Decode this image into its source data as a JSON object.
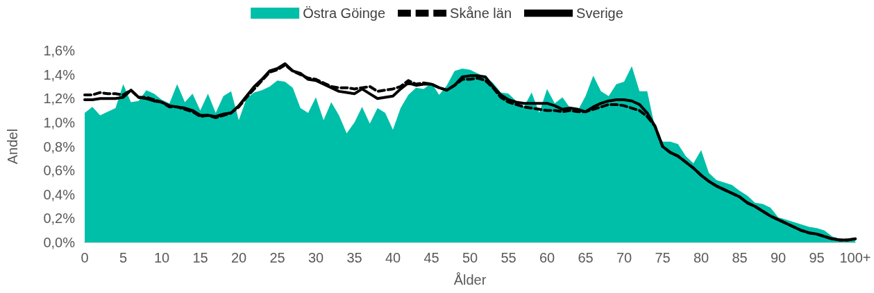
{
  "chart_data": {
    "type": "line",
    "xlabel": "Ålder",
    "ylabel": "Andel",
    "legend": "top",
    "grid": false,
    "marker": "none",
    "categories": [
      "0",
      null,
      null,
      null,
      null,
      "5",
      null,
      null,
      null,
      null,
      "10",
      null,
      null,
      null,
      null,
      "15",
      null,
      null,
      null,
      null,
      "20",
      null,
      null,
      null,
      null,
      "25",
      null,
      null,
      null,
      null,
      "30",
      null,
      null,
      null,
      null,
      "35",
      null,
      null,
      null,
      null,
      "40",
      null,
      null,
      null,
      null,
      "45",
      null,
      null,
      null,
      null,
      "50",
      null,
      null,
      null,
      null,
      "55",
      null,
      null,
      null,
      null,
      "60",
      null,
      null,
      null,
      null,
      "65",
      null,
      null,
      null,
      null,
      "70",
      null,
      null,
      null,
      null,
      "75",
      null,
      null,
      null,
      null,
      "80",
      null,
      null,
      null,
      null,
      "85",
      null,
      null,
      null,
      null,
      "90",
      null,
      null,
      null,
      null,
      "95",
      null,
      null,
      null,
      null,
      "100+"
    ],
    "ylim": [
      0,
      1.6
    ],
    "yticks": [
      {
        "value": 0,
        "label": "0,0%"
      },
      {
        "value": 0.2,
        "label": "0,2%"
      },
      {
        "value": 0.4,
        "label": "0,4%"
      },
      {
        "value": 0.6,
        "label": "0,6%"
      },
      {
        "value": 0.8,
        "label": "0,8%"
      },
      {
        "value": 1.0,
        "label": "1,0%"
      },
      {
        "value": 1.2,
        "label": "1,2%"
      },
      {
        "value": 1.4,
        "label": "1,4%"
      },
      {
        "value": 1.6,
        "label": "1,6%"
      }
    ],
    "series": [
      {
        "name": "Östra Göinge",
        "type": "area",
        "color": "#00bfa8",
        "values": [
          1.08,
          1.13,
          1.06,
          1.09,
          1.12,
          1.32,
          1.17,
          1.18,
          1.27,
          1.24,
          1.19,
          1.16,
          1.32,
          1.17,
          1.24,
          1.1,
          1.24,
          1.08,
          1.22,
          1.26,
          1.02,
          1.2,
          1.25,
          1.27,
          1.3,
          1.35,
          1.34,
          1.29,
          1.12,
          1.08,
          1.21,
          1.02,
          1.17,
          1.06,
          0.91,
          1.0,
          1.13,
          0.99,
          1.12,
          1.08,
          0.94,
          1.12,
          1.23,
          1.29,
          1.28,
          1.33,
          1.23,
          1.31,
          1.43,
          1.45,
          1.44,
          1.41,
          1.38,
          1.33,
          1.25,
          1.24,
          1.18,
          1.13,
          1.25,
          1.08,
          1.28,
          1.16,
          1.21,
          1.12,
          1.1,
          1.22,
          1.39,
          1.26,
          1.22,
          1.32,
          1.34,
          1.47,
          1.26,
          1.26,
          0.96,
          0.84,
          0.84,
          0.82,
          0.72,
          0.66,
          0.77,
          0.58,
          0.52,
          0.5,
          0.48,
          0.43,
          0.39,
          0.33,
          0.32,
          0.29,
          0.21,
          0.19,
          0.17,
          0.15,
          0.13,
          0.12,
          0.1,
          0.05,
          0.03,
          0.02,
          0.03
        ]
      },
      {
        "name": "Skåne län",
        "line_style": "dashed",
        "color": "#000000",
        "values": [
          1.23,
          1.23,
          1.25,
          1.24,
          1.24,
          1.23,
          1.27,
          1.21,
          1.21,
          1.19,
          1.17,
          1.13,
          1.13,
          1.11,
          1.09,
          1.05,
          1.06,
          1.04,
          1.06,
          1.08,
          1.13,
          1.21,
          1.28,
          1.35,
          1.42,
          1.44,
          1.48,
          1.43,
          1.4,
          1.37,
          1.36,
          1.33,
          1.3,
          1.29,
          1.29,
          1.28,
          1.29,
          1.3,
          1.26,
          1.27,
          1.28,
          1.3,
          1.35,
          1.32,
          1.33,
          1.32,
          1.29,
          1.27,
          1.31,
          1.36,
          1.36,
          1.37,
          1.35,
          1.29,
          1.21,
          1.17,
          1.15,
          1.13,
          1.12,
          1.11,
          1.1,
          1.1,
          1.09,
          1.1,
          1.09,
          1.09,
          1.11,
          1.13,
          1.15,
          1.15,
          1.14,
          1.12,
          1.1,
          1.05,
          0.97,
          0.8,
          0.75,
          0.72,
          0.67,
          0.62,
          0.56,
          0.51,
          0.47,
          0.44,
          0.41,
          0.38,
          0.33,
          0.3,
          0.26,
          0.22,
          0.19,
          0.16,
          0.13,
          0.1,
          0.08,
          0.07,
          0.05,
          0.03,
          0.02,
          0.02,
          0.03
        ]
      },
      {
        "name": "Sverige",
        "line_style": "solid",
        "color": "#000000",
        "values": [
          1.19,
          1.19,
          1.2,
          1.2,
          1.2,
          1.21,
          1.27,
          1.21,
          1.2,
          1.18,
          1.17,
          1.14,
          1.13,
          1.12,
          1.1,
          1.06,
          1.06,
          1.05,
          1.07,
          1.08,
          1.14,
          1.22,
          1.3,
          1.36,
          1.43,
          1.45,
          1.49,
          1.43,
          1.41,
          1.36,
          1.35,
          1.32,
          1.29,
          1.26,
          1.25,
          1.24,
          1.28,
          1.24,
          1.2,
          1.21,
          1.22,
          1.28,
          1.33,
          1.31,
          1.32,
          1.32,
          1.29,
          1.27,
          1.31,
          1.38,
          1.39,
          1.39,
          1.38,
          1.3,
          1.23,
          1.19,
          1.17,
          1.16,
          1.16,
          1.16,
          1.16,
          1.14,
          1.11,
          1.12,
          1.11,
          1.09,
          1.13,
          1.16,
          1.18,
          1.19,
          1.19,
          1.18,
          1.15,
          1.08,
          0.97,
          0.8,
          0.75,
          0.72,
          0.67,
          0.62,
          0.56,
          0.51,
          0.47,
          0.44,
          0.41,
          0.38,
          0.33,
          0.3,
          0.26,
          0.22,
          0.19,
          0.16,
          0.13,
          0.1,
          0.08,
          0.07,
          0.05,
          0.03,
          0.02,
          0.02,
          0.03
        ]
      }
    ]
  }
}
